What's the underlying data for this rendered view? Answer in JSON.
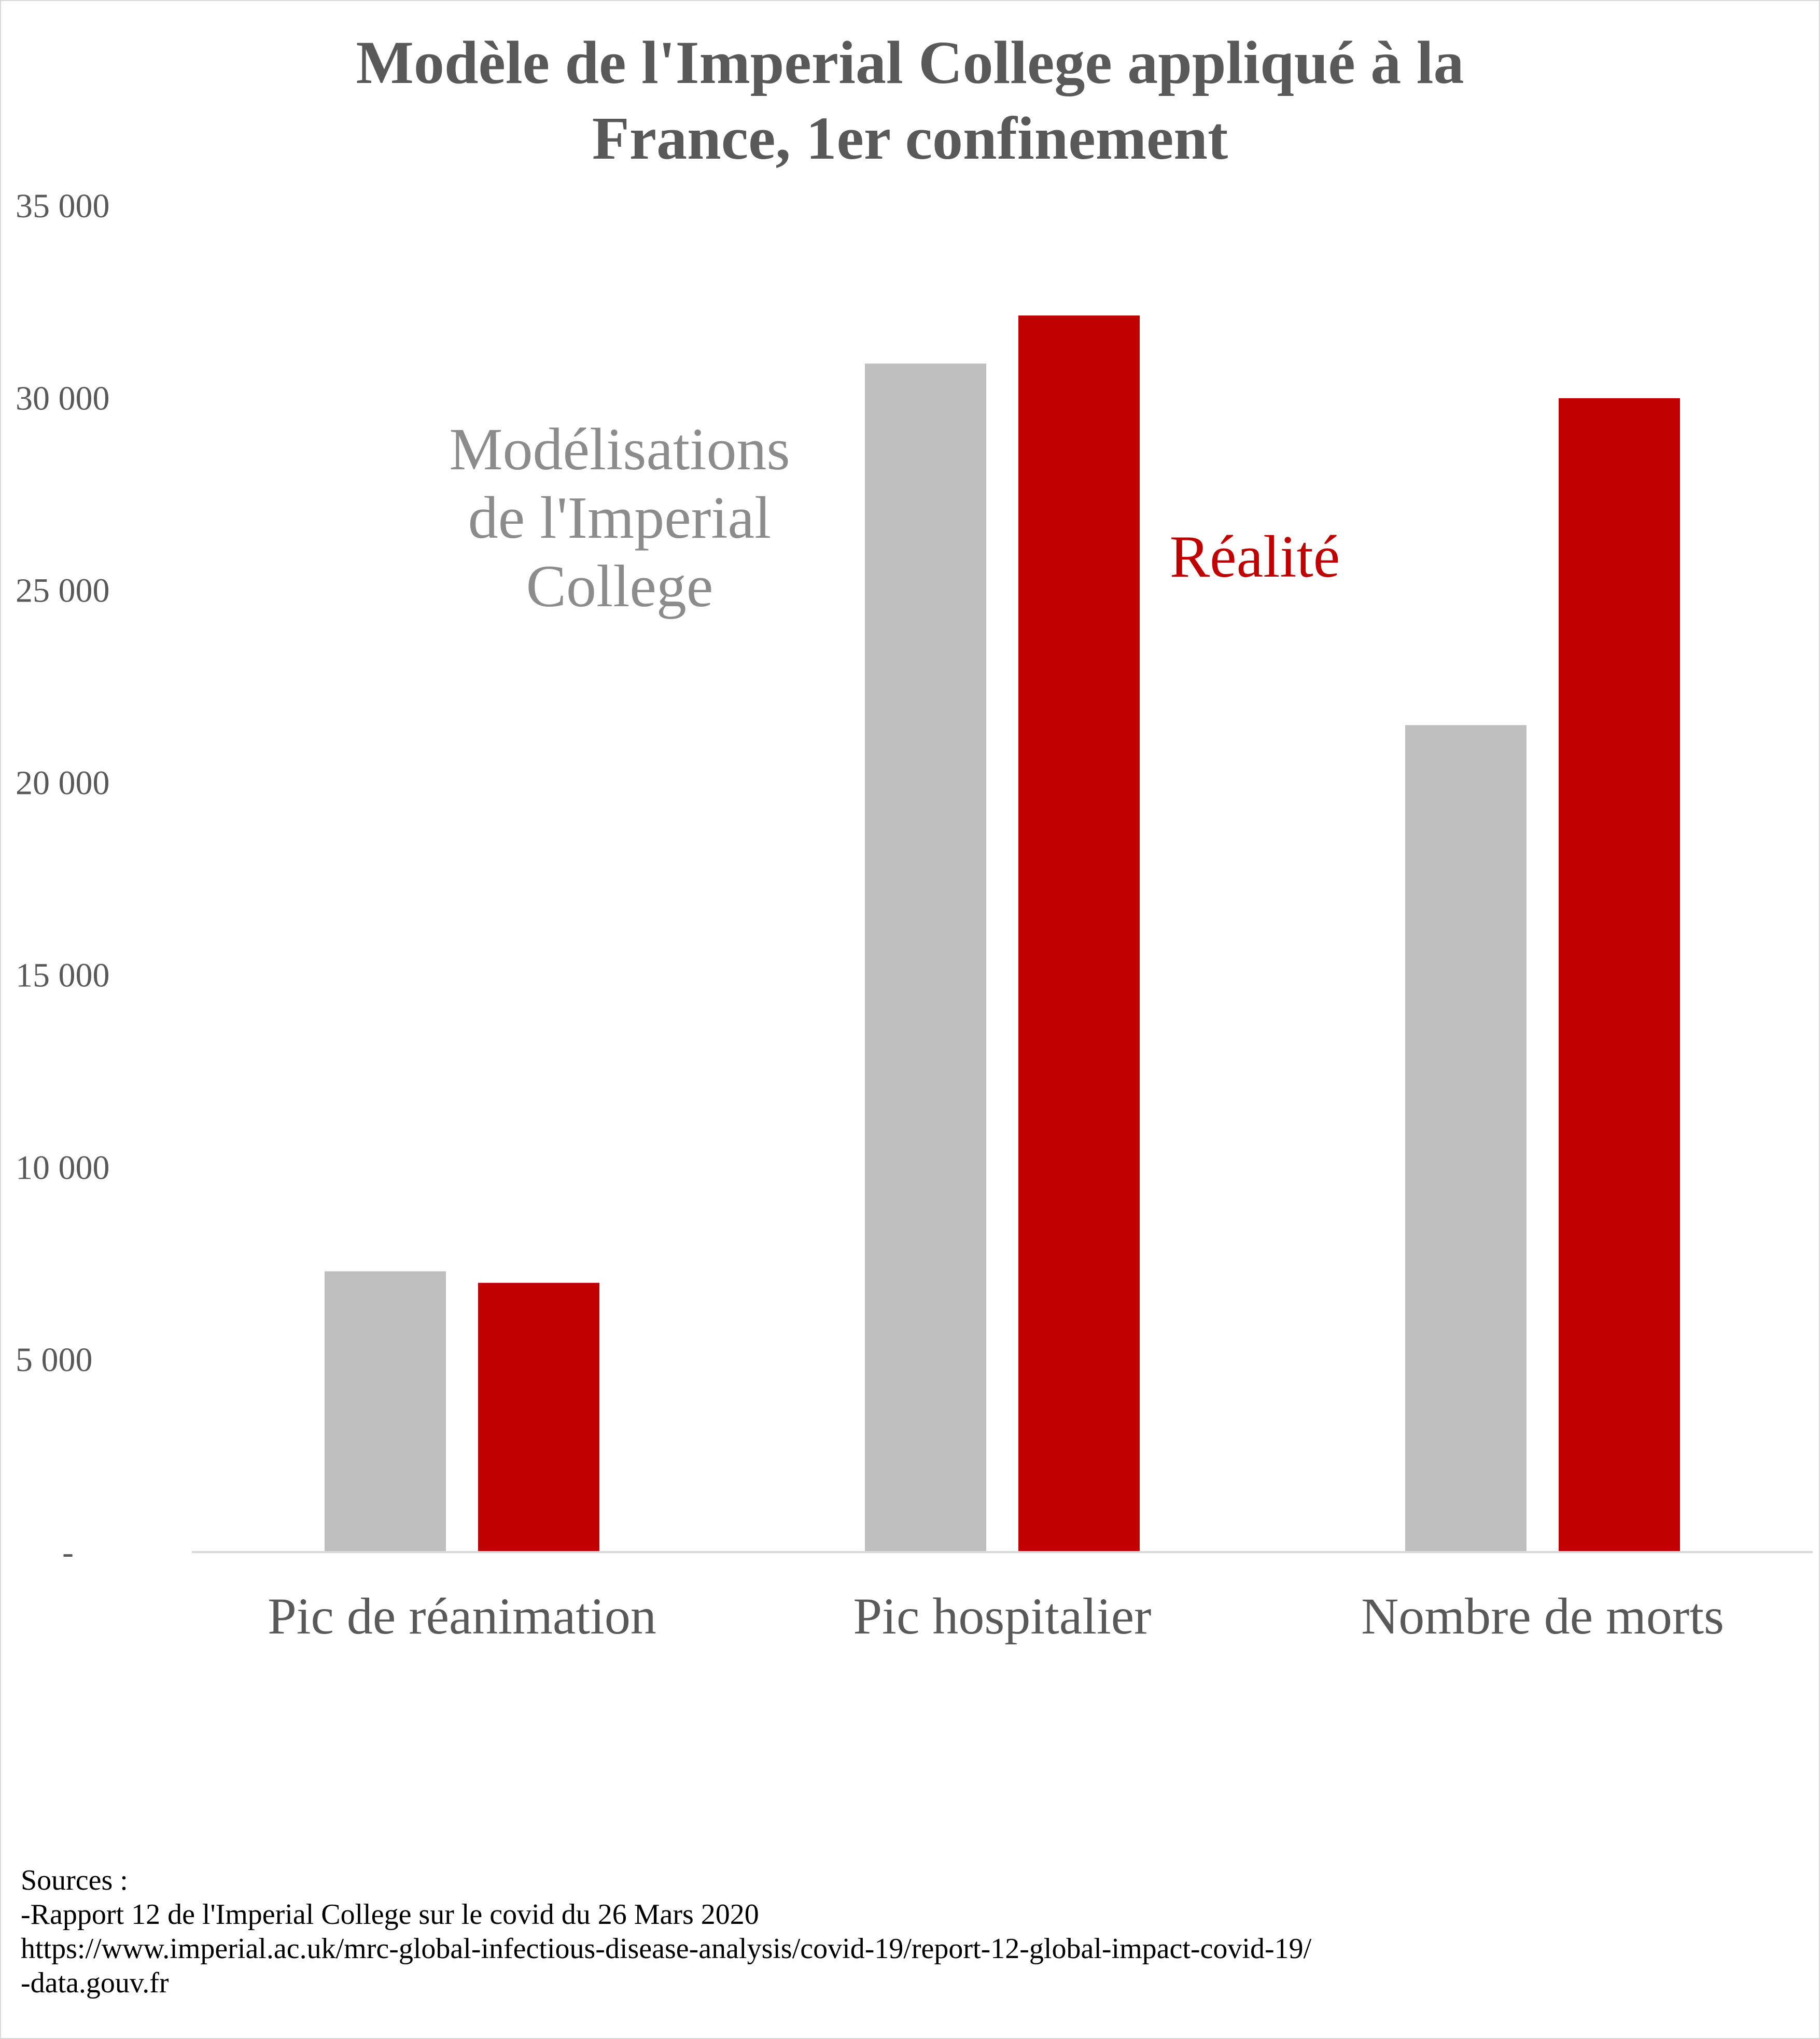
{
  "chart_data": {
    "type": "bar",
    "title_lines": [
      "Modèle de l'Imperial College appliqué à la",
      "France, 1er confinement"
    ],
    "categories": [
      "Pic de réanimation",
      "Pic hospitalier",
      "Nombre de morts"
    ],
    "series": [
      {
        "name": "Modélisations de l'Imperial College",
        "label_lines": [
          "Modélisations",
          "de l'Imperial",
          "College"
        ],
        "color": "#bfbfbf",
        "values": [
          7300,
          30900,
          21500
        ]
      },
      {
        "name": "Réalité",
        "label_lines": [
          "Réalité"
        ],
        "color": "#c00000",
        "values": [
          7000,
          32150,
          30000
        ]
      }
    ],
    "ylim": [
      0,
      35000
    ],
    "yticks": [
      0,
      5000,
      10000,
      15000,
      20000,
      25000,
      30000,
      35000
    ],
    "ytick_labels": [
      "-",
      "5 000",
      "10 000",
      "15 000",
      "20 000",
      "25 000",
      "30 000",
      "35 000"
    ],
    "grid": false,
    "legend": "inline labels"
  },
  "sources": [
    "Sources :",
    "-Rapport 12 de l'Imperial College sur le covid du 26 Mars 2020",
    " https://www.imperial.ac.uk/mrc-global-infectious-disease-analysis/covid-19/report-12-global-impact-covid-19/",
    "-data.gouv.fr"
  ]
}
